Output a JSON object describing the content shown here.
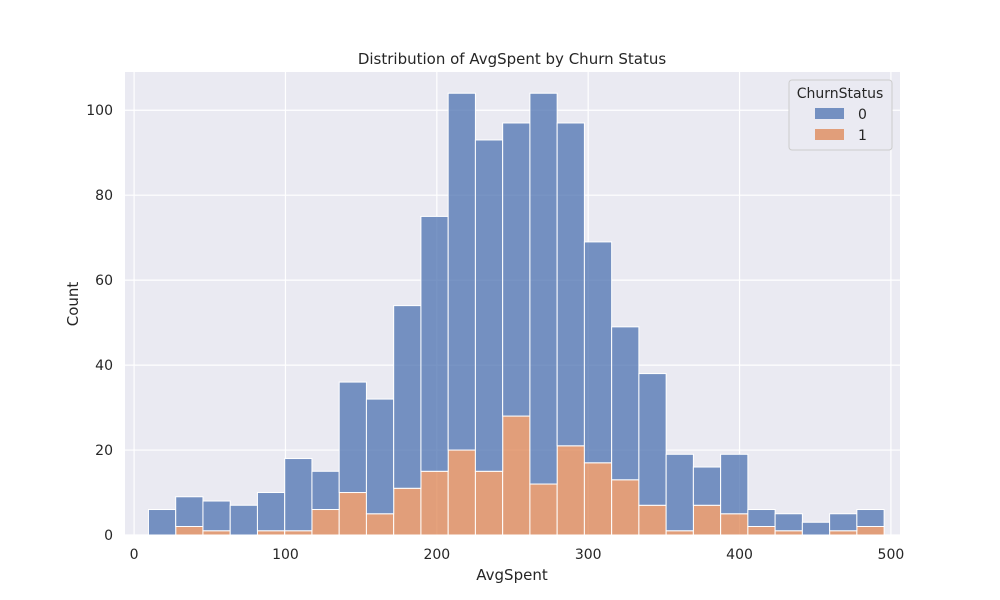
{
  "chart_data": {
    "type": "bar",
    "stacked": true,
    "title": "Distribution of AvgSpent by Churn Status",
    "xlabel": "AvgSpent",
    "ylabel": "Count",
    "xlim": [
      -6,
      506
    ],
    "ylim": [
      0,
      109
    ],
    "xticks": [
      0,
      100,
      200,
      300,
      400,
      500
    ],
    "yticks": [
      0,
      20,
      40,
      60,
      80,
      100
    ],
    "bin_edges": [
      9.5,
      27.5,
      45.5,
      63.5,
      81.5,
      99.5,
      117.5,
      135.5,
      153.5,
      171.5,
      189.5,
      207.5,
      225.5,
      243.5,
      261.5,
      279.5,
      297.5,
      315.5,
      333.5,
      351.5,
      369.5,
      387.5,
      405.5,
      423.5,
      441.5,
      459.5,
      477.5,
      495.5
    ],
    "grid": true,
    "legend": {
      "title": "ChurnStatus",
      "placement": "top-right",
      "entries": [
        "0",
        "1"
      ]
    },
    "series": [
      {
        "name": "1",
        "color": "#dd8452",
        "values": [
          0,
          2,
          1,
          0,
          1,
          1,
          6,
          10,
          5,
          11,
          15,
          20,
          15,
          28,
          12,
          21,
          17,
          13,
          7,
          1,
          7,
          5,
          2,
          1,
          0,
          1,
          2
        ]
      },
      {
        "name": "0",
        "color": "#4c72b0",
        "values": [
          6,
          7,
          7,
          7,
          9,
          17,
          9,
          26,
          27,
          43,
          60,
          84,
          78,
          69,
          92,
          76,
          52,
          36,
          31,
          18,
          9,
          14,
          4,
          4,
          3,
          4,
          4
        ]
      }
    ]
  },
  "style": {
    "plot_bg": "#eaeaf2",
    "grid_color": "#ffffff",
    "bar_edge": "#ffffff"
  }
}
